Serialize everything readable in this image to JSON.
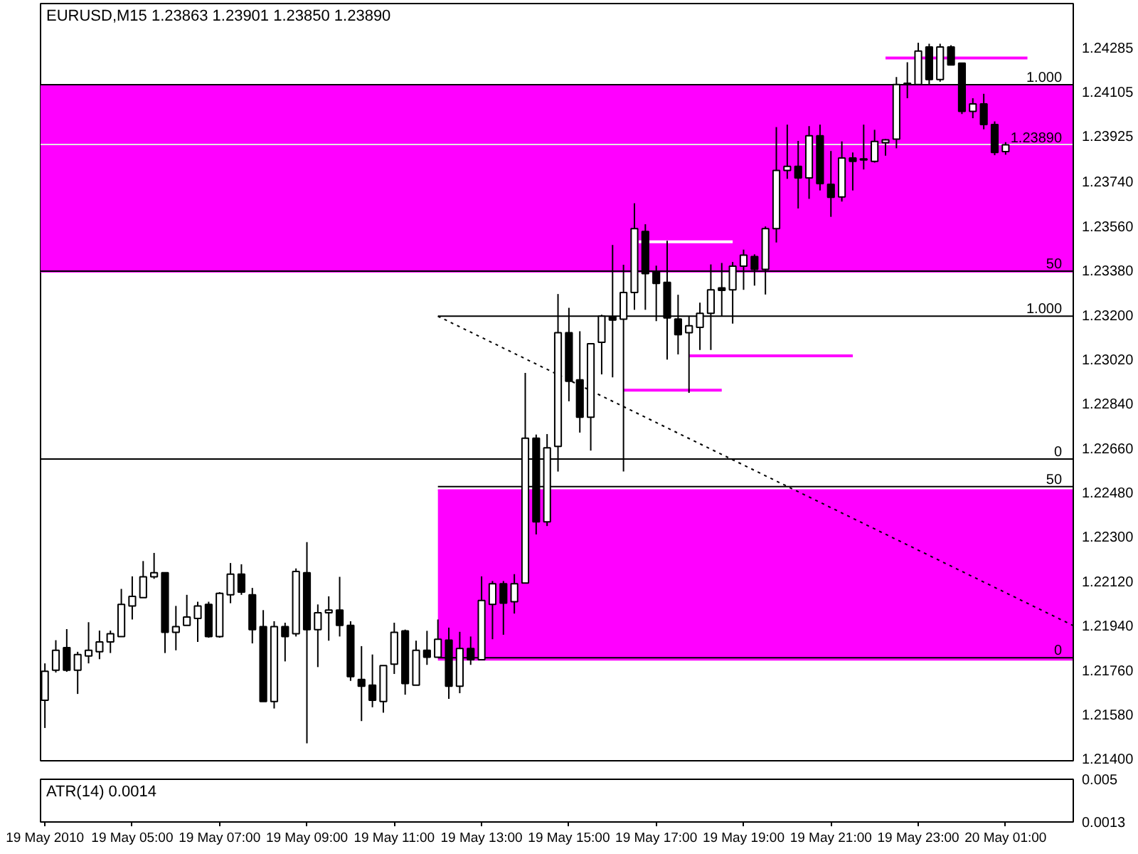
{
  "chart_data": [
    {
      "type": "candlestick",
      "title": "EURUSD,M15  1.23863 1.23901 1.23850 1.23890",
      "x": [
        "2010-05-19T03:00",
        "2010-05-19T03:15",
        "2010-05-19T03:30",
        "2010-05-19T03:45",
        "2010-05-19T04:00",
        "2010-05-19T04:15",
        "2010-05-19T04:30",
        "2010-05-19T04:45",
        "2010-05-19T05:00",
        "2010-05-19T05:15",
        "2010-05-19T05:30",
        "2010-05-19T05:45",
        "2010-05-19T06:00",
        "2010-05-19T06:15",
        "2010-05-19T06:30",
        "2010-05-19T06:45",
        "2010-05-19T07:00",
        "2010-05-19T07:15",
        "2010-05-19T07:30",
        "2010-05-19T07:45",
        "2010-05-19T08:00",
        "2010-05-19T08:15",
        "2010-05-19T08:30",
        "2010-05-19T08:45",
        "2010-05-19T09:00",
        "2010-05-19T09:15",
        "2010-05-19T09:30",
        "2010-05-19T09:45",
        "2010-05-19T10:00",
        "2010-05-19T10:15",
        "2010-05-19T10:30",
        "2010-05-19T10:45",
        "2010-05-19T11:00",
        "2010-05-19T11:15",
        "2010-05-19T11:30",
        "2010-05-19T11:45",
        "2010-05-19T12:00",
        "2010-05-19T12:15",
        "2010-05-19T12:30",
        "2010-05-19T12:45",
        "2010-05-19T13:00",
        "2010-05-19T13:15",
        "2010-05-19T13:30",
        "2010-05-19T13:45",
        "2010-05-19T14:00",
        "2010-05-19T14:15",
        "2010-05-19T14:30",
        "2010-05-19T14:45",
        "2010-05-19T15:00",
        "2010-05-19T15:15",
        "2010-05-19T15:30",
        "2010-05-19T15:45",
        "2010-05-19T16:00",
        "2010-05-19T16:15",
        "2010-05-19T16:30",
        "2010-05-19T16:45",
        "2010-05-19T17:00",
        "2010-05-19T17:15",
        "2010-05-19T17:30",
        "2010-05-19T17:45",
        "2010-05-19T18:00",
        "2010-05-19T18:15",
        "2010-05-19T18:30",
        "2010-05-19T18:45",
        "2010-05-19T19:00",
        "2010-05-19T19:15",
        "2010-05-19T19:30",
        "2010-05-19T19:45",
        "2010-05-19T20:00",
        "2010-05-19T20:15",
        "2010-05-19T20:30",
        "2010-05-19T20:45",
        "2010-05-19T21:00",
        "2010-05-19T21:15",
        "2010-05-19T21:30",
        "2010-05-19T21:45",
        "2010-05-19T22:00",
        "2010-05-19T22:15",
        "2010-05-19T22:30",
        "2010-05-19T22:45",
        "2010-05-19T23:00",
        "2010-05-19T23:15",
        "2010-05-19T23:30",
        "2010-05-19T23:45",
        "2010-05-20T00:00",
        "2010-05-20T00:15",
        "2010-05-20T00:30",
        "2010-05-20T00:45",
        "2010-05-20T01:00"
      ],
      "ohlc": [
        [
          1.21637,
          1.21787,
          1.21525,
          1.21755
        ],
        [
          1.21759,
          1.21881,
          1.2175,
          1.2184
        ],
        [
          1.21851,
          1.21926,
          1.21753,
          1.21759
        ],
        [
          1.21759,
          1.21834,
          1.21663,
          1.21823
        ],
        [
          1.21817,
          1.21954,
          1.21787,
          1.2184
        ],
        [
          1.21834,
          1.2192,
          1.21804,
          1.21874
        ],
        [
          1.21874,
          1.2192,
          1.21829,
          1.21907
        ],
        [
          1.21896,
          1.22089,
          1.21896,
          1.22026
        ],
        [
          1.2202,
          1.2214,
          1.21965,
          1.22059
        ],
        [
          1.22054,
          1.22202,
          1.22054,
          1.22138
        ],
        [
          1.22138,
          1.22235,
          1.2213,
          1.22155
        ],
        [
          1.22155,
          1.22155,
          1.21829,
          1.21913
        ],
        [
          1.21913,
          1.2202,
          1.2184,
          1.21936
        ],
        [
          1.21941,
          1.22065,
          1.21941,
          1.21975
        ],
        [
          1.21969,
          1.22037,
          1.21874,
          1.2202
        ],
        [
          1.22026,
          1.22037,
          1.21891,
          1.21896
        ],
        [
          1.21896,
          1.22076,
          1.21891,
          1.22071
        ],
        [
          1.22065,
          1.22194,
          1.22031,
          1.22149
        ],
        [
          1.22149,
          1.22189,
          1.22065,
          1.22076
        ],
        [
          1.22065,
          1.22093,
          1.21868,
          1.21924
        ],
        [
          1.21936,
          1.22003,
          1.21632,
          1.21632
        ],
        [
          1.21632,
          1.21958,
          1.21604,
          1.21936
        ],
        [
          1.21936,
          1.21952,
          1.21795,
          1.21896
        ],
        [
          1.21907,
          1.22172,
          1.21896,
          1.2216
        ],
        [
          1.22155,
          1.22279,
          1.21463,
          1.21924
        ],
        [
          1.21924,
          1.22026,
          1.21772,
          1.21992
        ],
        [
          1.21992,
          1.22059,
          1.21879,
          1.22003
        ],
        [
          1.22003,
          1.22138,
          1.21896,
          1.21941
        ],
        [
          1.21941,
          1.21958,
          1.21716,
          1.21733
        ],
        [
          1.21722,
          1.21857,
          1.21553,
          1.21694
        ],
        [
          1.21699,
          1.21823,
          1.21609,
          1.21637
        ],
        [
          1.21632,
          1.21778,
          1.21587,
          1.21778
        ],
        [
          1.21784,
          1.21952,
          1.21744,
          1.21913
        ],
        [
          1.21919,
          1.21924,
          1.2166,
          1.21705
        ],
        [
          1.21699,
          1.21879,
          1.21699,
          1.2184
        ],
        [
          1.2184,
          1.21919,
          1.21781,
          1.21812
        ],
        [
          1.21812,
          1.21965,
          1.21812,
          1.21885
        ],
        [
          1.21881,
          1.21932,
          1.21643,
          1.21694
        ],
        [
          1.21694,
          1.21915,
          1.21666,
          1.21847
        ],
        [
          1.21847,
          1.21896,
          1.21781,
          1.21802
        ],
        [
          1.21802,
          1.2214,
          1.21802,
          1.22042
        ],
        [
          1.22026,
          1.22121,
          1.21885,
          1.2211
        ],
        [
          1.2211,
          1.22121,
          1.21903,
          1.22031
        ],
        [
          1.22037,
          1.22149,
          1.21989,
          1.2211
        ],
        [
          1.22113,
          1.22965,
          1.22113,
          1.227
        ],
        [
          1.227,
          1.22715,
          1.2231,
          1.22361
        ],
        [
          1.22361,
          1.22717,
          1.22344,
          1.22661
        ],
        [
          1.22667,
          1.23285,
          1.22565,
          1.23128
        ],
        [
          1.23128,
          1.23229,
          1.2285,
          1.22931
        ],
        [
          1.22937,
          1.23134,
          1.22723,
          1.22785
        ],
        [
          1.22785,
          1.23083,
          1.2265,
          1.23083
        ],
        [
          1.23089,
          1.23201,
          1.22959,
          1.23195
        ],
        [
          1.23193,
          1.23484,
          1.22947,
          1.23179
        ],
        [
          1.23183,
          1.23404,
          1.22565,
          1.23291
        ],
        [
          1.23291,
          1.23653,
          1.23221,
          1.2355
        ],
        [
          1.23539,
          1.23568,
          1.23221,
          1.23368
        ],
        [
          1.23377,
          1.234,
          1.23175,
          1.23328
        ],
        [
          1.23332,
          1.23501,
          1.23019,
          1.23188
        ],
        [
          1.23184,
          1.23282,
          1.2304,
          1.2312
        ],
        [
          1.23128,
          1.23193,
          1.22884,
          1.23156
        ],
        [
          1.2315,
          1.2325,
          1.23058,
          1.23207
        ],
        [
          1.23207,
          1.23405,
          1.23058,
          1.23302
        ],
        [
          1.2331,
          1.23411,
          1.23193,
          1.233
        ],
        [
          1.23302,
          1.23415,
          1.23165,
          1.23398
        ],
        [
          1.23398,
          1.23465,
          1.23302,
          1.23443
        ],
        [
          1.23437,
          1.23446,
          1.23319,
          1.23385
        ],
        [
          1.23385,
          1.23559,
          1.23283,
          1.2355
        ],
        [
          1.2355,
          1.23962,
          1.23494,
          1.23786
        ],
        [
          1.23786,
          1.23972,
          1.23752,
          1.23803
        ],
        [
          1.23803,
          1.23906,
          1.23632,
          1.23756
        ],
        [
          1.23756,
          1.23966,
          1.23671,
          1.23927
        ],
        [
          1.23927,
          1.23972,
          1.23705,
          1.23733
        ],
        [
          1.2373,
          1.23865,
          1.23598,
          1.23677
        ],
        [
          1.23679,
          1.23904,
          1.2366,
          1.23837
        ],
        [
          1.23837,
          1.23859,
          1.23705,
          1.23823
        ],
        [
          1.23833,
          1.23972,
          1.2379,
          1.23829
        ],
        [
          1.23823,
          1.23951,
          1.23818,
          1.23904
        ],
        [
          1.23899,
          1.23913,
          1.23846,
          1.2391
        ],
        [
          1.23913,
          1.24165,
          1.23876,
          1.24135
        ],
        [
          1.2414,
          1.24225,
          1.24079,
          1.24137
        ],
        [
          1.24135,
          1.24304,
          1.24135,
          1.2427
        ],
        [
          1.24287,
          1.243,
          1.24135,
          1.24155
        ],
        [
          1.24155,
          1.243,
          1.24146,
          1.24287
        ],
        [
          1.24287,
          1.24294,
          1.24214,
          1.24214
        ],
        [
          1.24221,
          1.24221,
          1.24015,
          1.24026
        ],
        [
          1.24026,
          1.24079,
          1.23998,
          1.24056
        ],
        [
          1.24056,
          1.24097,
          1.23953,
          1.23972
        ],
        [
          1.23972,
          1.23985,
          1.23848,
          1.23859
        ],
        [
          1.23863,
          1.23901,
          1.2385,
          1.2389
        ]
      ],
      "colors": [
        "#ffffff",
        "#ffffff",
        "#000000",
        "#ffffff",
        "#ffffff",
        "#ffffff",
        "#ffffff",
        "#ffffff",
        "#ffffff",
        "#ffffff",
        "#ffffff",
        "#000000",
        "#ffffff",
        "#ffffff",
        "#ffffff",
        "#000000",
        "#ffffff",
        "#ffffff",
        "#000000",
        "#000000",
        "#000000",
        "#ffffff",
        "#000000",
        "#ffffff",
        "#000000",
        "#ffffff",
        "#ffffff",
        "#000000",
        "#000000",
        "#000000",
        "#000000",
        "#ffffff",
        "#ffffff",
        "#000000",
        "#ffffff",
        "#000000",
        "#ffffff",
        "#000000",
        "#ffffff",
        "#000000",
        "#ffffff",
        "#ffffff",
        "#000000",
        "#ffffff",
        "#ffffff",
        "#000000",
        "#ffffff",
        "#ffffff",
        "#000000",
        "#000000",
        "#ffffff",
        "#ffffff",
        "#000000",
        "#ffffff",
        "#ffffff",
        "#000000",
        "#000000",
        "#000000",
        "#000000",
        "#ffffff",
        "#ffffff",
        "#ffffff",
        "#000000",
        "#ffffff",
        "#ffffff",
        "#000000",
        "#ffffff",
        "#ffffff",
        "#ffffff",
        "#000000",
        "#ffffff",
        "#000000",
        "#000000",
        "#ffffff",
        "#000000",
        "#000000",
        "#ffffff",
        "#ffffff",
        "#ffffff",
        "#000000",
        "#ffffff",
        "#000000",
        "#ffffff",
        "#000000",
        "#000000",
        "#ffffff",
        "#000000",
        "#000000",
        "#ffffff"
      ],
      "series": [
        {
          "type": "line",
          "x": [
            "2010-05-19T12:00",
            "2010-05-20T02:33"
          ],
          "values": [
            1.2249,
            1.2249
          ],
          "lower": [
            1.21798,
            1.21798
          ],
          "upper": [
            1.2249,
            1.2249
          ],
          "color": "#ff00ff"
        },
        {
          "type": "line",
          "x": [
            "2010-05-19T12:00",
            "2010-05-20T02:33"
          ],
          "values": [
            1.23195,
            1.23195
          ],
          "color": "#000000"
        },
        {
          "type": "line",
          "x": [
            "2010-05-19T12:00",
            "2010-05-20T02:33"
          ],
          "values": [
            1.22504,
            1.22504
          ],
          "color": "#000000"
        },
        {
          "type": "line",
          "x": [
            "2010-05-19T12:00",
            "2010-05-20T02:33"
          ],
          "values": [
            1.2181,
            1.2181
          ],
          "color": "#000000"
        },
        {
          "type": "line",
          "x": [
            "2010-05-19T12:00",
            "2010-05-20T02:33"
          ],
          "values": [
            1.23195,
            1.2194
          ],
          "color": "#000000",
          "line_style": "dotted"
        },
        {
          "type": "line",
          "x": [
            "2010-05-19T16:36",
            "2010-05-19T18:45"
          ],
          "values": [
            1.23497,
            1.23497
          ],
          "color": "#ffffff"
        },
        {
          "type": "line",
          "x": [
            "2010-05-19T17:45",
            "2010-05-19T21:30"
          ],
          "values": [
            1.23034,
            1.23034
          ],
          "color": "#ff00ff"
        },
        {
          "type": "line",
          "x": [
            "2010-05-19T16:15",
            "2010-05-19T18:30"
          ],
          "values": [
            1.22895,
            1.22895
          ],
          "color": "#ff00ff"
        },
        {
          "type": "line",
          "x": [
            "2010-05-19T22:15",
            "2010-05-20T01:30"
          ],
          "values": [
            1.24242,
            1.24242
          ],
          "color": "#ff00ff"
        }
      ],
      "bands": [
        {
          "axis": "y",
          "from": 1.23373,
          "to": 1.24135,
          "color": "#ff00ff"
        }
      ],
      "ref_lines": [
        {
          "axis": "y",
          "value": 1.24135,
          "color": "#000000"
        },
        {
          "axis": "y",
          "value": 1.23377,
          "color": "#000000"
        },
        {
          "axis": "y",
          "value": 1.22616,
          "color": "#000000"
        },
        {
          "axis": "y",
          "value": 1.2389,
          "label": "1.23890",
          "color": "#e6e6e6"
        }
      ],
      "annotations": [
        {
          "text": "1.000",
          "x": "2010-05-20T02:33",
          "y": 1.24135
        },
        {
          "text": "50",
          "x": "2010-05-20T02:33",
          "y": 1.23377
        },
        {
          "text": "0",
          "x": "2010-05-20T02:33",
          "y": 1.22616
        },
        {
          "text": "1.000",
          "x": "2010-05-20T02:33",
          "y": 1.23195
        },
        {
          "text": "50",
          "x": "2010-05-20T02:33",
          "y": 1.22504
        },
        {
          "text": "0",
          "x": "2010-05-20T02:33",
          "y": 1.2181
        }
      ],
      "xlim": [
        "2010-05-19T02:54",
        "2010-05-20T02:33"
      ],
      "ylim": [
        1.21392,
        1.24463
      ],
      "yticks": [
        {
          "value": 1.214,
          "label": "1.21400"
        },
        {
          "value": 1.2158,
          "label": "1.21580"
        },
        {
          "value": 1.2176,
          "label": "1.21760"
        },
        {
          "value": 1.2194,
          "label": "1.21940"
        },
        {
          "value": 1.2212,
          "label": "1.22120"
        },
        {
          "value": 1.223,
          "label": "1.22300"
        },
        {
          "value": 1.2248,
          "label": "1.22480"
        },
        {
          "value": 1.2266,
          "label": "1.22660"
        },
        {
          "value": 1.2284,
          "label": "1.22840"
        },
        {
          "value": 1.2302,
          "label": "1.23020"
        },
        {
          "value": 1.232,
          "label": "1.23200"
        },
        {
          "value": 1.2338,
          "label": "1.23380"
        },
        {
          "value": 1.2356,
          "label": "1.23560"
        },
        {
          "value": 1.2374,
          "label": "1.23740"
        },
        {
          "value": 1.23925,
          "label": "1.23925"
        },
        {
          "value": 1.24105,
          "label": "1.24105"
        },
        {
          "value": 1.24285,
          "label": "1.24285"
        }
      ],
      "tick_labels": "y"
    },
    {
      "type": "line",
      "title": "ATR(14) 0.0014",
      "xlim": [
        "2010-05-19T02:54",
        "2010-05-20T02:33"
      ],
      "xticks": [
        {
          "value": "2010-05-19T03:00",
          "label": "19 May 2010"
        },
        {
          "value": "2010-05-19T05:00",
          "label": "19 May 05:00"
        },
        {
          "value": "2010-05-19T07:00",
          "label": "19 May 07:00"
        },
        {
          "value": "2010-05-19T09:00",
          "label": "19 May 09:00"
        },
        {
          "value": "2010-05-19T11:00",
          "label": "19 May 11:00"
        },
        {
          "value": "2010-05-19T13:00",
          "label": "19 May 13:00"
        },
        {
          "value": "2010-05-19T15:00",
          "label": "19 May 15:00"
        },
        {
          "value": "2010-05-19T17:00",
          "label": "19 May 17:00"
        },
        {
          "value": "2010-05-19T19:00",
          "label": "19 May 19:00"
        },
        {
          "value": "2010-05-19T21:00",
          "label": "19 May 21:00"
        },
        {
          "value": "2010-05-19T23:00",
          "label": "19 May 23:00"
        },
        {
          "value": "2010-05-20T01:00",
          "label": "20 May 01:00"
        }
      ],
      "ylim": [
        0.0013,
        0.005
      ],
      "yticks": [
        0.005,
        0.0013
      ]
    }
  ]
}
